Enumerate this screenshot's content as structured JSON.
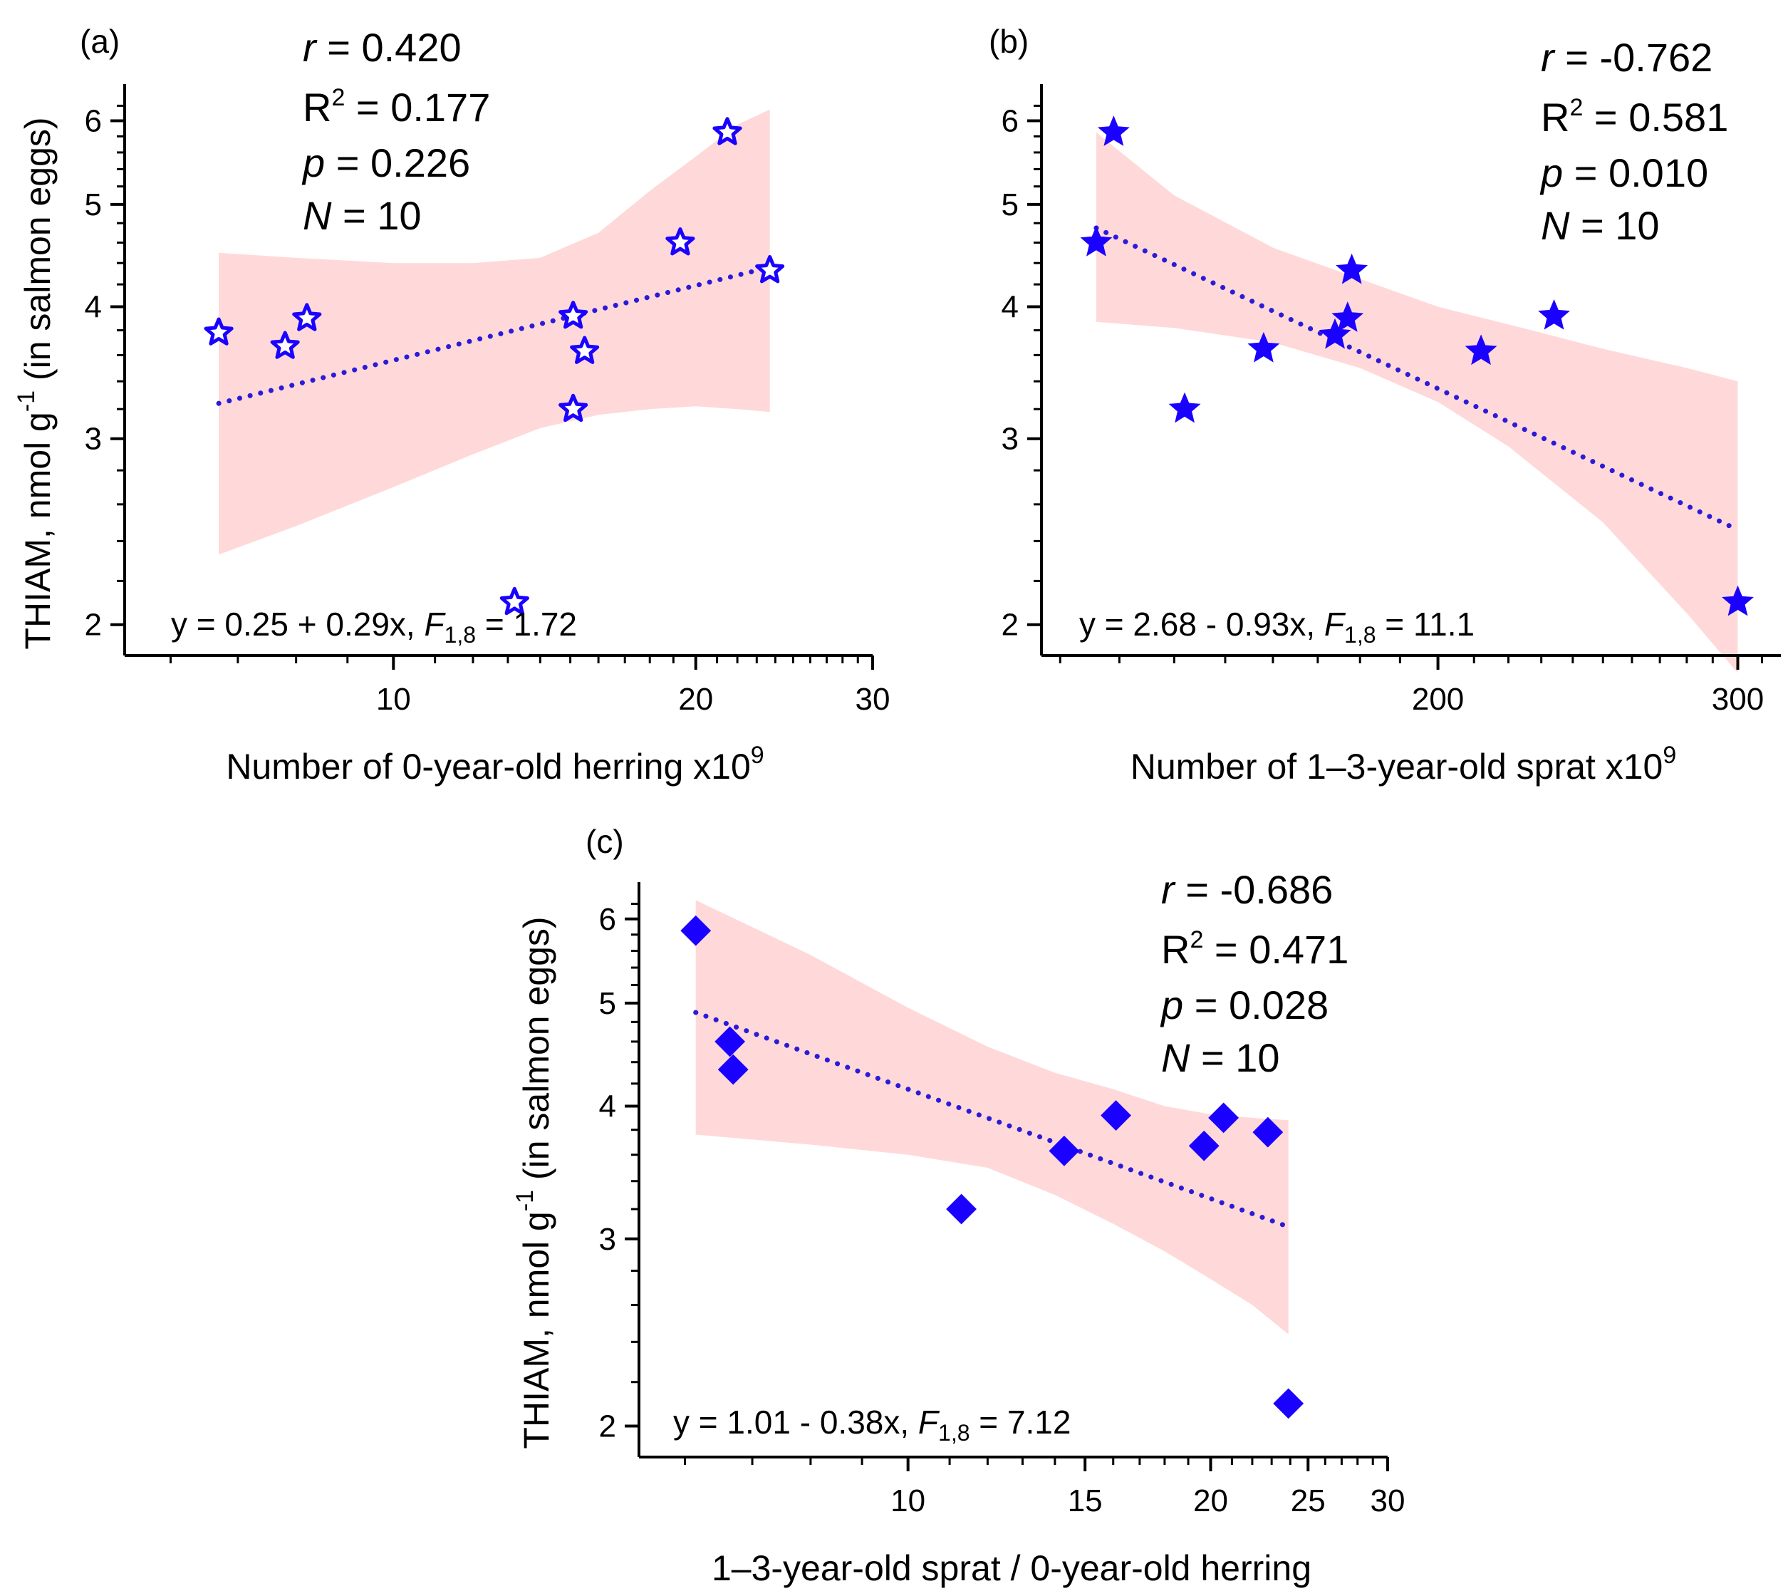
{
  "colors": {
    "marker": "#1a00ff",
    "fit_line": "#2b1bd9",
    "band": "#ffd9d9",
    "axis": "#000000"
  },
  "chart_data": [
    {
      "id": "a",
      "type": "scatter",
      "panel_label": "(a)",
      "xscale": "log",
      "yscale": "log",
      "xlabel": "Number of 0-year-old herring x10",
      "xlabel_sup": "9",
      "ylabel": "THIAM, nmol g",
      "ylabel_sup": "-1",
      "ylabel_tail": " (in salmon eggs)",
      "xlim": [
        5.4,
        30
      ],
      "ylim": [
        1.87,
        6.4
      ],
      "xticks": [
        10,
        20,
        30
      ],
      "yticks": [
        2,
        3,
        4,
        5,
        6
      ],
      "marker": "star-open",
      "x": [
        6.7,
        7.8,
        8.2,
        13.2,
        15.1,
        15.1,
        15.5,
        19.3,
        21.5,
        23.7
      ],
      "y": [
        3.78,
        3.67,
        3.9,
        2.1,
        3.2,
        3.92,
        3.63,
        4.6,
        5.85,
        4.33
      ],
      "fit": {
        "x": [
          6.7,
          23.7
        ],
        "y": [
          3.24,
          4.36
        ]
      },
      "band": {
        "x": [
          6.7,
          8.0,
          10.0,
          12.0,
          14.0,
          16.0,
          18.0,
          20.0,
          22.0,
          23.7
        ],
        "upper": [
          4.5,
          4.45,
          4.4,
          4.4,
          4.45,
          4.7,
          5.15,
          5.55,
          5.95,
          6.15
        ],
        "lower": [
          2.33,
          2.48,
          2.7,
          2.9,
          3.07,
          3.16,
          3.2,
          3.22,
          3.2,
          3.18
        ]
      },
      "stats": {
        "r_label": "r",
        "r_value": " = 0.420",
        "r2_base": "R",
        "r2_sup": "2",
        "r2_value": " = 0.177",
        "p_label": "p",
        "p_value": " = 0.226",
        "n_label": "N",
        "n_value": " = 10"
      },
      "equation": {
        "text": "y = 0.25 + 0.29x, ",
        "f_label": "F",
        "f_sub": "1,8",
        "f_value": " = 1.72"
      }
    },
    {
      "id": "b",
      "type": "scatter",
      "panel_label": "(b)",
      "xscale": "log",
      "yscale": "log",
      "xlabel": "Number of 1–3-year-old sprat x10",
      "xlabel_sup": "9",
      "ylabel": "",
      "ylabel_sup": "",
      "ylabel_tail": "",
      "xlim": [
        117,
        318
      ],
      "ylim": [
        1.87,
        6.4
      ],
      "xticks": [
        200,
        300
      ],
      "yticks": [
        2,
        3,
        4,
        5,
        6
      ],
      "marker": "star-filled",
      "x": [
        126,
        129,
        142,
        158,
        174,
        177,
        178,
        212,
        234,
        300
      ],
      "y": [
        4.6,
        5.85,
        3.2,
        3.65,
        3.76,
        3.9,
        4.33,
        3.63,
        3.92,
        2.1
      ],
      "fit": {
        "x": [
          126,
          300
        ],
        "y": [
          4.75,
          2.46
        ]
      },
      "band": {
        "x": [
          126,
          140,
          160,
          180,
          200,
          220,
          250,
          280,
          300
        ],
        "upper": [
          5.85,
          5.1,
          4.55,
          4.25,
          4.0,
          3.85,
          3.65,
          3.5,
          3.4
        ],
        "lower": [
          3.87,
          3.82,
          3.7,
          3.5,
          3.25,
          2.95,
          2.5,
          2.05,
          1.8
        ]
      },
      "stats": {
        "r_label": "r",
        "r_value": " = -0.762",
        "r2_base": "R",
        "r2_sup": "2",
        "r2_value": " = 0.581",
        "p_label": "p",
        "p_value": " = 0.010",
        "n_label": "N",
        "n_value": " = 10"
      },
      "equation": {
        "text": "y = 2.68 - 0.93x, ",
        "f_label": "F",
        "f_sub": "1,8",
        "f_value": " = 11.1"
      }
    },
    {
      "id": "c",
      "type": "scatter",
      "panel_label": "(c)",
      "xscale": "log",
      "yscale": "log",
      "xlabel": "1–3-year-old sprat / 0-year-old herring",
      "xlabel_sup": "",
      "ylabel": "THIAM, nmol g",
      "ylabel_sup": "-1",
      "ylabel_tail": " (in salmon eggs)",
      "xlim": [
        5.4,
        30
      ],
      "ylim": [
        1.87,
        6.4
      ],
      "xticks": [
        10,
        15,
        20,
        25,
        30
      ],
      "yticks": [
        2,
        3,
        4,
        5,
        6
      ],
      "marker": "diamond-filled",
      "x": [
        6.15,
        6.65,
        6.7,
        11.3,
        14.3,
        16.1,
        19.7,
        20.6,
        22.8,
        23.9
      ],
      "y": [
        5.85,
        4.6,
        4.33,
        3.2,
        3.63,
        3.92,
        3.67,
        3.9,
        3.78,
        2.1
      ],
      "fit": {
        "x": [
          6.15,
          23.9
        ],
        "y": [
          4.9,
          3.08
        ]
      },
      "band": {
        "x": [
          6.15,
          8.0,
          10.0,
          12.0,
          14.0,
          16.0,
          18.0,
          20.0,
          22.0,
          23.9
        ],
        "upper": [
          6.25,
          5.55,
          4.95,
          4.55,
          4.3,
          4.15,
          4.0,
          3.93,
          3.9,
          3.88
        ],
        "lower": [
          3.76,
          3.68,
          3.6,
          3.5,
          3.3,
          3.1,
          2.92,
          2.75,
          2.6,
          2.44
        ]
      },
      "stats": {
        "r_label": "r",
        "r_value": " = -0.686",
        "r2_base": "R",
        "r2_sup": "2",
        "r2_value": " = 0.471",
        "p_label": "p",
        "p_value": " = 0.028",
        "n_label": "N",
        "n_value": " = 10"
      },
      "equation": {
        "text": "y = 1.01 - 0.38x, ",
        "f_label": "F",
        "f_sub": "1,8",
        "f_value": " = 7.12"
      }
    }
  ]
}
